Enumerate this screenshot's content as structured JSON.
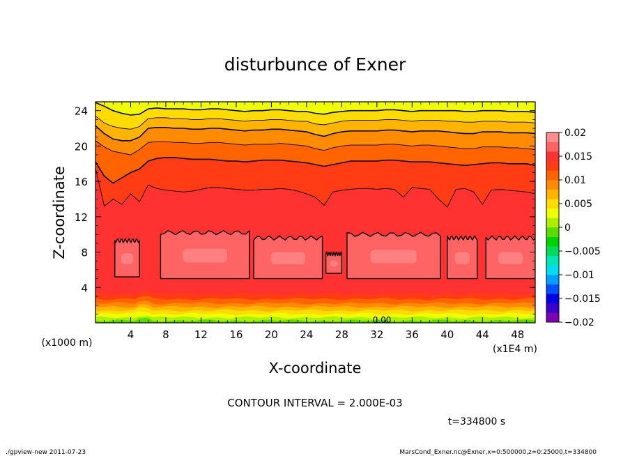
{
  "chart_data": {
    "type": "heatmap",
    "title": "disturbunce of Exner",
    "xlabel": "X-coordinate",
    "ylabel": "Z-coordinate",
    "x_unit": "(x1E4 m)",
    "y_unit": "(x1000 m)",
    "xlim": [
      0,
      50
    ],
    "ylim": [
      0,
      25
    ],
    "x_ticks": [
      "4",
      "8",
      "12",
      "16",
      "20",
      "24",
      "28",
      "32",
      "36",
      "40",
      "44",
      "48"
    ],
    "y_ticks": [
      "4",
      "8",
      "12",
      "16",
      "20",
      "24"
    ],
    "contour_label": "0.00",
    "colorbar": {
      "min": -0.02,
      "max": 0.02,
      "ticks": [
        "0.02",
        "0.015",
        "0.01",
        "0.005",
        "0",
        "−0.005",
        "−0.01",
        "−0.015",
        "−0.02"
      ]
    },
    "iso_heights": [
      {
        "level": 0.002,
        "z": 0.6
      },
      {
        "level": 0.004,
        "z": 1.0
      },
      {
        "level": 0.006,
        "z": 1.4
      },
      {
        "level": 0.008,
        "z": 1.8
      },
      {
        "level": 0.01,
        "z": 2.2
      },
      {
        "level": 0.012,
        "z": 2.7
      },
      {
        "level": 0.014,
        "z": 3.3
      },
      {
        "level": 0.016,
        "z": 4.0
      }
    ],
    "upper_contours": [
      {
        "level": 0.004,
        "z": [
          24.9,
          24.5,
          24.0,
          23.7,
          23.5,
          23.6,
          24.2,
          24.3,
          24.2,
          24.2,
          24.2,
          24.1,
          24.1,
          24.2,
          24.2,
          24.1,
          24.0,
          23.9,
          24.0,
          24.0,
          24.1,
          24.1,
          24.0,
          23.9,
          23.9,
          23.7,
          23.6,
          23.8,
          23.9,
          24.0,
          24.0,
          24.0,
          24.0,
          24.1,
          24.1,
          24.0,
          23.9,
          24.0,
          24.0,
          24.0,
          24.0,
          24.0,
          23.9,
          23.9,
          24.0,
          24.0,
          24.0,
          23.9,
          23.9,
          23.9,
          23.8
        ]
      },
      {
        "level": 0.006,
        "z": [
          23.4,
          22.6,
          22.2,
          22.0,
          21.9,
          22.2,
          23.1,
          23.2,
          23.2,
          23.1,
          23.1,
          23.0,
          23.0,
          23.1,
          23.1,
          23.0,
          22.9,
          22.8,
          22.9,
          22.9,
          23.0,
          23.0,
          22.9,
          22.8,
          22.8,
          22.5,
          22.4,
          22.6,
          22.8,
          22.9,
          22.9,
          22.9,
          22.9,
          23.0,
          23.0,
          22.9,
          22.8,
          22.9,
          22.9,
          22.9,
          22.8,
          22.8,
          22.7,
          22.7,
          22.8,
          22.8,
          22.8,
          22.7,
          22.7,
          22.7,
          22.6
        ]
      },
      {
        "level": 0.008,
        "z": [
          22.3,
          21.4,
          20.8,
          20.6,
          20.6,
          21.0,
          22.0,
          22.1,
          22.1,
          22.0,
          22.0,
          21.9,
          21.9,
          22.0,
          22.0,
          21.9,
          21.8,
          21.7,
          21.8,
          21.8,
          21.9,
          21.9,
          21.8,
          21.7,
          21.6,
          21.3,
          21.1,
          21.4,
          21.6,
          21.7,
          21.7,
          21.7,
          21.7,
          21.8,
          21.8,
          21.7,
          21.6,
          21.7,
          21.7,
          21.7,
          21.6,
          21.5,
          21.4,
          21.4,
          21.6,
          21.6,
          21.6,
          21.5,
          21.5,
          21.5,
          21.4
        ]
      },
      {
        "level": 0.01,
        "z": [
          20.6,
          19.9,
          19.4,
          19.2,
          19.0,
          19.6,
          20.4,
          20.5,
          20.5,
          20.4,
          20.4,
          20.3,
          20.3,
          20.4,
          20.4,
          20.3,
          20.2,
          20.1,
          20.2,
          20.2,
          20.2,
          20.3,
          20.2,
          20.1,
          20.0,
          19.7,
          19.5,
          19.8,
          20.0,
          20.1,
          20.1,
          20.1,
          20.1,
          20.2,
          20.2,
          20.1,
          20.0,
          20.1,
          20.1,
          20.0,
          19.9,
          19.8,
          19.7,
          19.7,
          19.9,
          19.9,
          19.9,
          19.8,
          19.8,
          19.7,
          19.6
        ]
      },
      {
        "level": 0.012,
        "z": [
          18.2,
          16.6,
          15.8,
          16.4,
          17.0,
          17.4,
          18.3,
          18.6,
          18.7,
          18.7,
          18.6,
          18.5,
          18.5,
          18.5,
          18.4,
          18.3,
          18.3,
          18.2,
          18.3,
          18.4,
          18.4,
          18.4,
          18.3,
          18.2,
          18.1,
          17.9,
          17.7,
          17.9,
          18.1,
          18.3,
          18.3,
          18.3,
          18.3,
          18.4,
          18.4,
          18.3,
          18.2,
          18.2,
          18.2,
          18.1,
          18.0,
          17.9,
          17.8,
          17.9,
          18.0,
          18.1,
          18.1,
          18.0,
          18.0,
          18.0,
          17.8
        ]
      },
      {
        "level": 0.014,
        "z": [
          17.5,
          13.2,
          14.0,
          13.4,
          14.6,
          13.7,
          15.6,
          15.2,
          15.0,
          14.9,
          14.8,
          14.9,
          15.1,
          15.3,
          15.3,
          15.2,
          15.1,
          15.0,
          15.0,
          15.1,
          15.1,
          15.2,
          15.1,
          14.9,
          14.6,
          14.2,
          13.3,
          14.8,
          15.0,
          15.1,
          15.2,
          15.2,
          15.1,
          15.2,
          15.1,
          14.2,
          15.3,
          15.2,
          15.1,
          14.0,
          13.1,
          15.1,
          15.2,
          14.8,
          13.4,
          15.0,
          15.1,
          15.0,
          14.9,
          14.8,
          14.6
        ]
      }
    ],
    "cells": [
      {
        "x": [
          2.2,
          5.0
        ],
        "z": [
          5.2,
          9.3
        ]
      },
      {
        "x": [
          7.4,
          17.5
        ],
        "z": [
          5.0,
          10.2
        ]
      },
      {
        "x": [
          18.0,
          25.8
        ],
        "z": [
          5.0,
          9.6
        ]
      },
      {
        "x": [
          26.2,
          28.0
        ],
        "z": [
          5.6,
          7.8
        ]
      },
      {
        "x": [
          28.6,
          39.2
        ],
        "z": [
          5.0,
          10.0
        ]
      },
      {
        "x": [
          40.0,
          43.4
        ],
        "z": [
          5.0,
          9.6
        ]
      },
      {
        "x": [
          44.4,
          50.0
        ],
        "z": [
          5.0,
          9.6
        ]
      }
    ]
  },
  "annotations": {
    "contour_interval": "CONTOUR INTERVAL = 2.000E-03",
    "time": "t=334800 s"
  },
  "footer": {
    "left": "./gpview-new   2011-07-23",
    "right": "MarsCond_Exner.nc@Exner,x=0:500000,z=0:25000,t=334800"
  },
  "colors": {
    "palette": [
      "#7f00b4",
      "#3c00c8",
      "#0000e6",
      "#0050ff",
      "#00a0ff",
      "#00dcf0",
      "#00e6b4",
      "#00dc5a",
      "#00d200",
      "#5adc00",
      "#aaf000",
      "#f0ff00",
      "#ffdc00",
      "#ffb400",
      "#ff8c00",
      "#ff6400",
      "#ff3c14",
      "#ff3232",
      "#ff6464",
      "#ff8c8c"
    ]
  }
}
